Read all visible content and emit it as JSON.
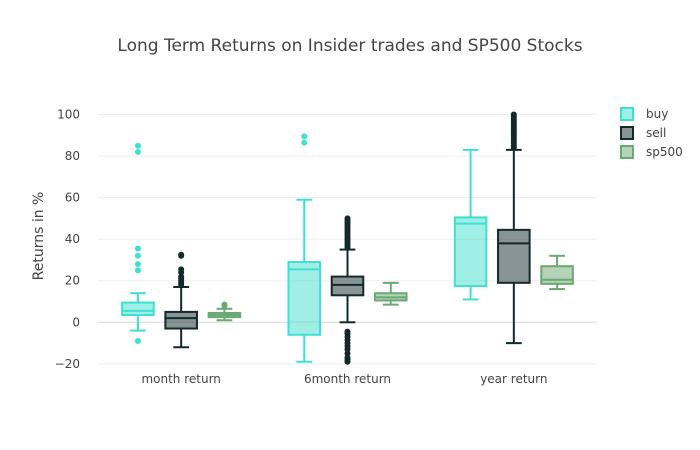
{
  "chart_data": {
    "type": "box",
    "title": "Long Term Returns on Insider trades and SP500 Stocks",
    "xlabel": "",
    "ylabel": "Returns in %",
    "ylim": [
      -22,
      107
    ],
    "yticks": [
      -20,
      0,
      20,
      40,
      60,
      80,
      100
    ],
    "ytick_labels": [
      "−20",
      "0",
      "20",
      "40",
      "60",
      "80",
      "100"
    ],
    "grid": true,
    "legend_position": "top-right",
    "categories": [
      "month return",
      "6month return",
      "year return"
    ],
    "series": [
      {
        "name": "buy",
        "color": "#40e0d0",
        "boxes": [
          {
            "lower_whisker": -4,
            "q1": 3.5,
            "median": 5.5,
            "q3": 9.5,
            "upper_whisker": 14,
            "outliers": [
              -9,
              25,
              28,
              32,
              35.5,
              82,
              85
            ]
          },
          {
            "lower_whisker": -19,
            "q1": -6,
            "median": 25.5,
            "q3": 29,
            "upper_whisker": 59,
            "outliers": [
              86.5,
              89.5
            ]
          },
          {
            "lower_whisker": 11,
            "q1": 17.5,
            "median": 47.5,
            "q3": 50.5,
            "upper_whisker": 83,
            "outliers": []
          }
        ]
      },
      {
        "name": "sell",
        "color": "#13292a",
        "boxes": [
          {
            "lower_whisker": -12,
            "q1": -3,
            "median": 2,
            "q3": 5,
            "upper_whisker": 17,
            "outliers": [
              18,
              19,
              20,
              21,
              22,
              24,
              25.5,
              32,
              32.5
            ]
          },
          {
            "lower_whisker": 0,
            "q1": 13,
            "median": 18,
            "q3": 22,
            "upper_whisker": 35,
            "outliers": [
              -19,
              -18,
              -17,
              -15,
              -13,
              -11.5,
              -10,
              -8.5,
              -7,
              -5.5,
              -4.5,
              36,
              37,
              38,
              39,
              40,
              41,
              42,
              43,
              44,
              45,
              46,
              47,
              48,
              49,
              50
            ]
          },
          {
            "lower_whisker": -10,
            "q1": 19,
            "median": 38,
            "q3": 44.5,
            "upper_whisker": 83,
            "outliers": [
              84,
              85,
              86,
              87,
              88,
              89,
              90,
              91,
              92,
              93,
              94,
              95,
              96,
              97,
              98,
              99,
              100
            ]
          }
        ]
      },
      {
        "name": "sp500",
        "color": "#6aa874",
        "boxes": [
          {
            "lower_whisker": 1,
            "q1": 2.5,
            "median": 3.5,
            "q3": 4.5,
            "upper_whisker": 6.5,
            "outliers": [
              8,
              8.5
            ]
          },
          {
            "lower_whisker": 8.5,
            "q1": 10.5,
            "median": 12,
            "q3": 14,
            "upper_whisker": 19,
            "outliers": []
          },
          {
            "lower_whisker": 16,
            "q1": 18.5,
            "median": 20.5,
            "q3": 27,
            "upper_whisker": 32,
            "outliers": []
          }
        ]
      }
    ]
  }
}
